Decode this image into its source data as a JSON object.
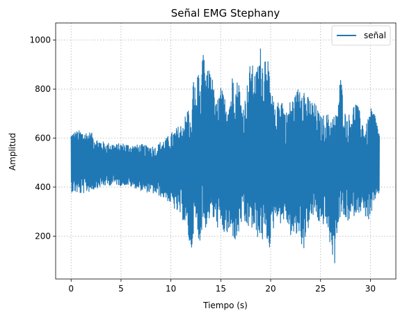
{
  "chart_data": {
    "type": "line",
    "title": "Señal EMG Stephany",
    "xlabel": "Tiempo (s)",
    "ylabel": "Amplitud",
    "xlim": [
      -1.55,
      32.55
    ],
    "ylim": [
      25,
      1070
    ],
    "xticks": [
      0,
      5,
      10,
      15,
      20,
      25,
      30
    ],
    "yticks": [
      200,
      400,
      600,
      800,
      1000
    ],
    "grid": true,
    "legend_position": "top-right",
    "series": [
      {
        "name": "señal",
        "color": "#1f77b4",
        "envelope_x": [
          0.0,
          0.5,
          1.0,
          1.5,
          2.0,
          2.5,
          3.0,
          3.5,
          4.0,
          4.5,
          5.0,
          5.5,
          6.0,
          6.5,
          7.0,
          7.5,
          8.0,
          8.5,
          9.0,
          9.5,
          10.0,
          10.5,
          11.0,
          11.5,
          11.8,
          12.0,
          12.3,
          12.5,
          12.8,
          13.0,
          13.2,
          13.5,
          14.0,
          14.5,
          15.0,
          15.5,
          16.0,
          16.3,
          16.5,
          16.8,
          17.0,
          17.3,
          17.5,
          18.0,
          18.5,
          19.0,
          19.3,
          19.6,
          19.8,
          20.0,
          20.3,
          20.5,
          21.0,
          21.5,
          22.0,
          22.5,
          23.0,
          23.2,
          23.5,
          24.0,
          24.5,
          25.0,
          25.5,
          26.0,
          26.4,
          26.6,
          27.0,
          27.5,
          28.0,
          28.5,
          29.0,
          29.5,
          30.0,
          30.2,
          30.5,
          30.9
        ],
        "upper": [
          625,
          630,
          632,
          628,
          625,
          600,
          590,
          580,
          582,
          575,
          580,
          578,
          574,
          572,
          576,
          570,
          572,
          565,
          590,
          600,
          620,
          640,
          660,
          700,
          740,
          650,
          880,
          760,
          930,
          740,
          970,
          860,
          900,
          740,
          810,
          760,
          790,
          920,
          820,
          860,
          760,
          740,
          780,
          920,
          860,
          980,
          900,
          1022,
          880,
          800,
          760,
          700,
          800,
          700,
          760,
          780,
          840,
          860,
          780,
          760,
          740,
          690,
          700,
          700,
          700,
          700,
          860,
          700,
          700,
          760,
          700,
          640,
          720,
          720,
          700,
          620
        ],
        "lower": [
          380,
          375,
          370,
          378,
          382,
          395,
          400,
          405,
          408,
          410,
          405,
          408,
          400,
          395,
          385,
          380,
          375,
          370,
          360,
          350,
          330,
          300,
          280,
          240,
          180,
          110,
          230,
          240,
          160,
          200,
          250,
          230,
          280,
          240,
          220,
          200,
          200,
          190,
          165,
          200,
          250,
          240,
          230,
          230,
          200,
          180,
          175,
          180,
          135,
          170,
          230,
          290,
          250,
          270,
          200,
          190,
          210,
          115,
          190,
          260,
          290,
          230,
          260,
          155,
          75,
          200,
          280,
          260,
          260,
          290,
          300,
          280,
          250,
          290,
          350,
          375
        ]
      }
    ]
  }
}
